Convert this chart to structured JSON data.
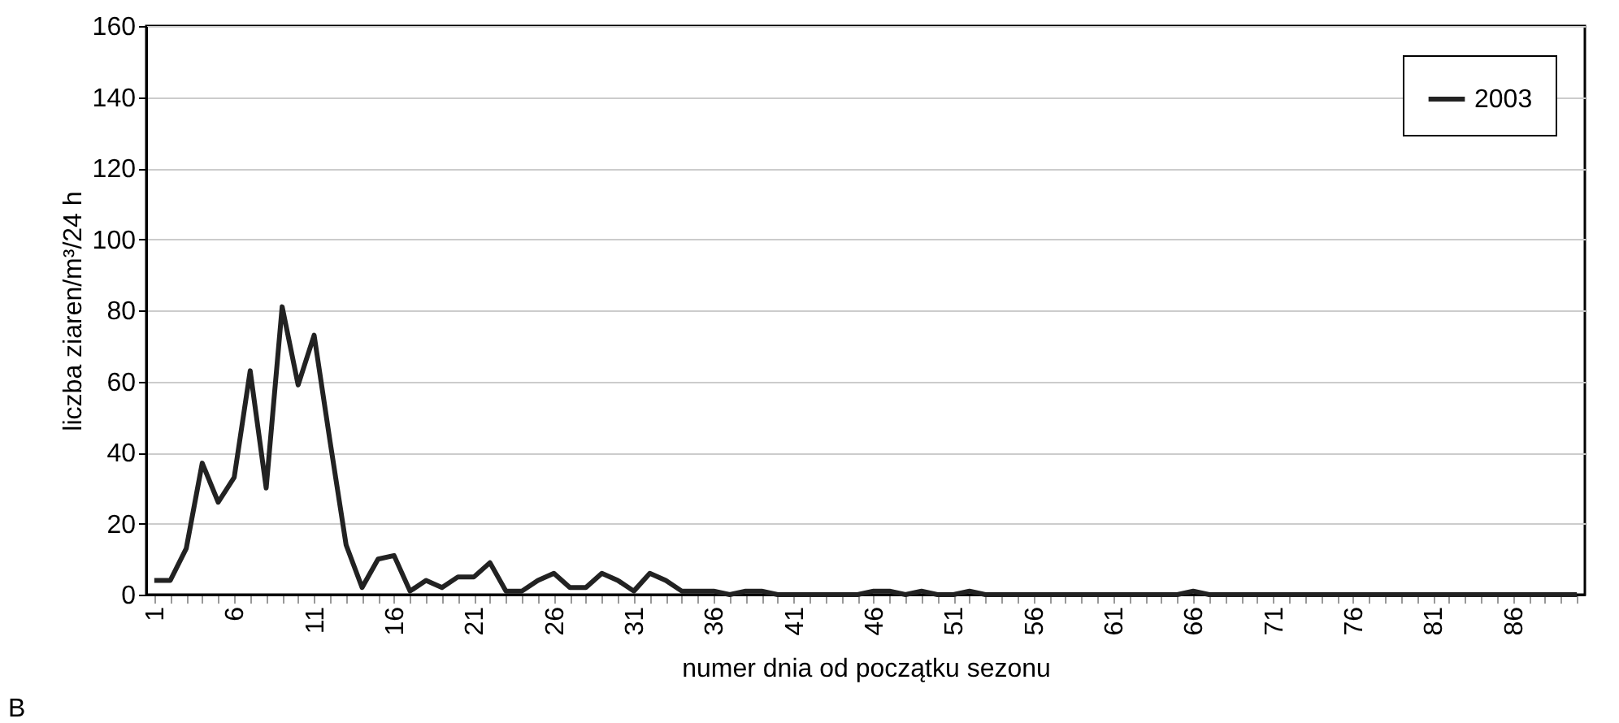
{
  "chart_data": {
    "type": "line",
    "xlabel": "numer dnia od początku sezonu",
    "ylabel": "liczba ziaren/m³/24 h",
    "categories": [
      "1",
      null,
      null,
      null,
      null,
      "6",
      null,
      null,
      null,
      null,
      "11",
      null,
      null,
      null,
      null,
      "16",
      null,
      null,
      null,
      null,
      "21",
      null,
      null,
      null,
      null,
      "26",
      null,
      null,
      null,
      null,
      "31",
      null,
      null,
      null,
      null,
      "36",
      null,
      null,
      null,
      null,
      "41",
      null,
      null,
      null,
      null,
      "46",
      null,
      null,
      null,
      null,
      "51",
      null,
      null,
      null,
      null,
      "56",
      null,
      null,
      null,
      null,
      "61",
      null,
      null,
      null,
      null,
      "66",
      null,
      null,
      null,
      null,
      "71",
      null,
      null,
      null,
      null,
      "76",
      null,
      null,
      null,
      null,
      "81",
      null,
      null,
      null,
      null,
      "86",
      null,
      null,
      null,
      null
    ],
    "series": [
      {
        "name": "2003",
        "color": "#222222",
        "values": [
          4,
          4,
          13,
          37,
          26,
          33,
          63,
          30,
          81,
          59,
          73,
          43,
          14,
          2,
          10,
          11,
          1,
          4,
          2,
          5,
          5,
          9,
          1,
          1,
          4,
          6,
          2,
          2,
          6,
          4,
          1,
          6,
          4,
          1,
          1,
          1,
          0,
          1,
          1,
          0,
          0,
          0,
          0,
          0,
          0,
          1,
          1,
          0,
          1,
          0,
          0,
          1,
          0,
          0,
          0,
          0,
          0,
          0,
          0,
          0,
          0,
          0,
          0,
          0,
          0,
          1,
          0,
          0,
          0,
          0,
          0,
          0,
          0,
          0,
          0,
          0,
          0,
          0,
          0,
          0,
          0,
          0,
          0,
          0,
          0,
          0,
          0,
          0,
          0,
          0
        ]
      }
    ],
    "ylim": [
      0,
      160
    ],
    "yticks": [
      0,
      20,
      40,
      60,
      80,
      100,
      120,
      140,
      160
    ],
    "grid": "y",
    "legend": "top right",
    "marker": "none",
    "line_style": "solid",
    "annotations": [
      "B"
    ]
  }
}
